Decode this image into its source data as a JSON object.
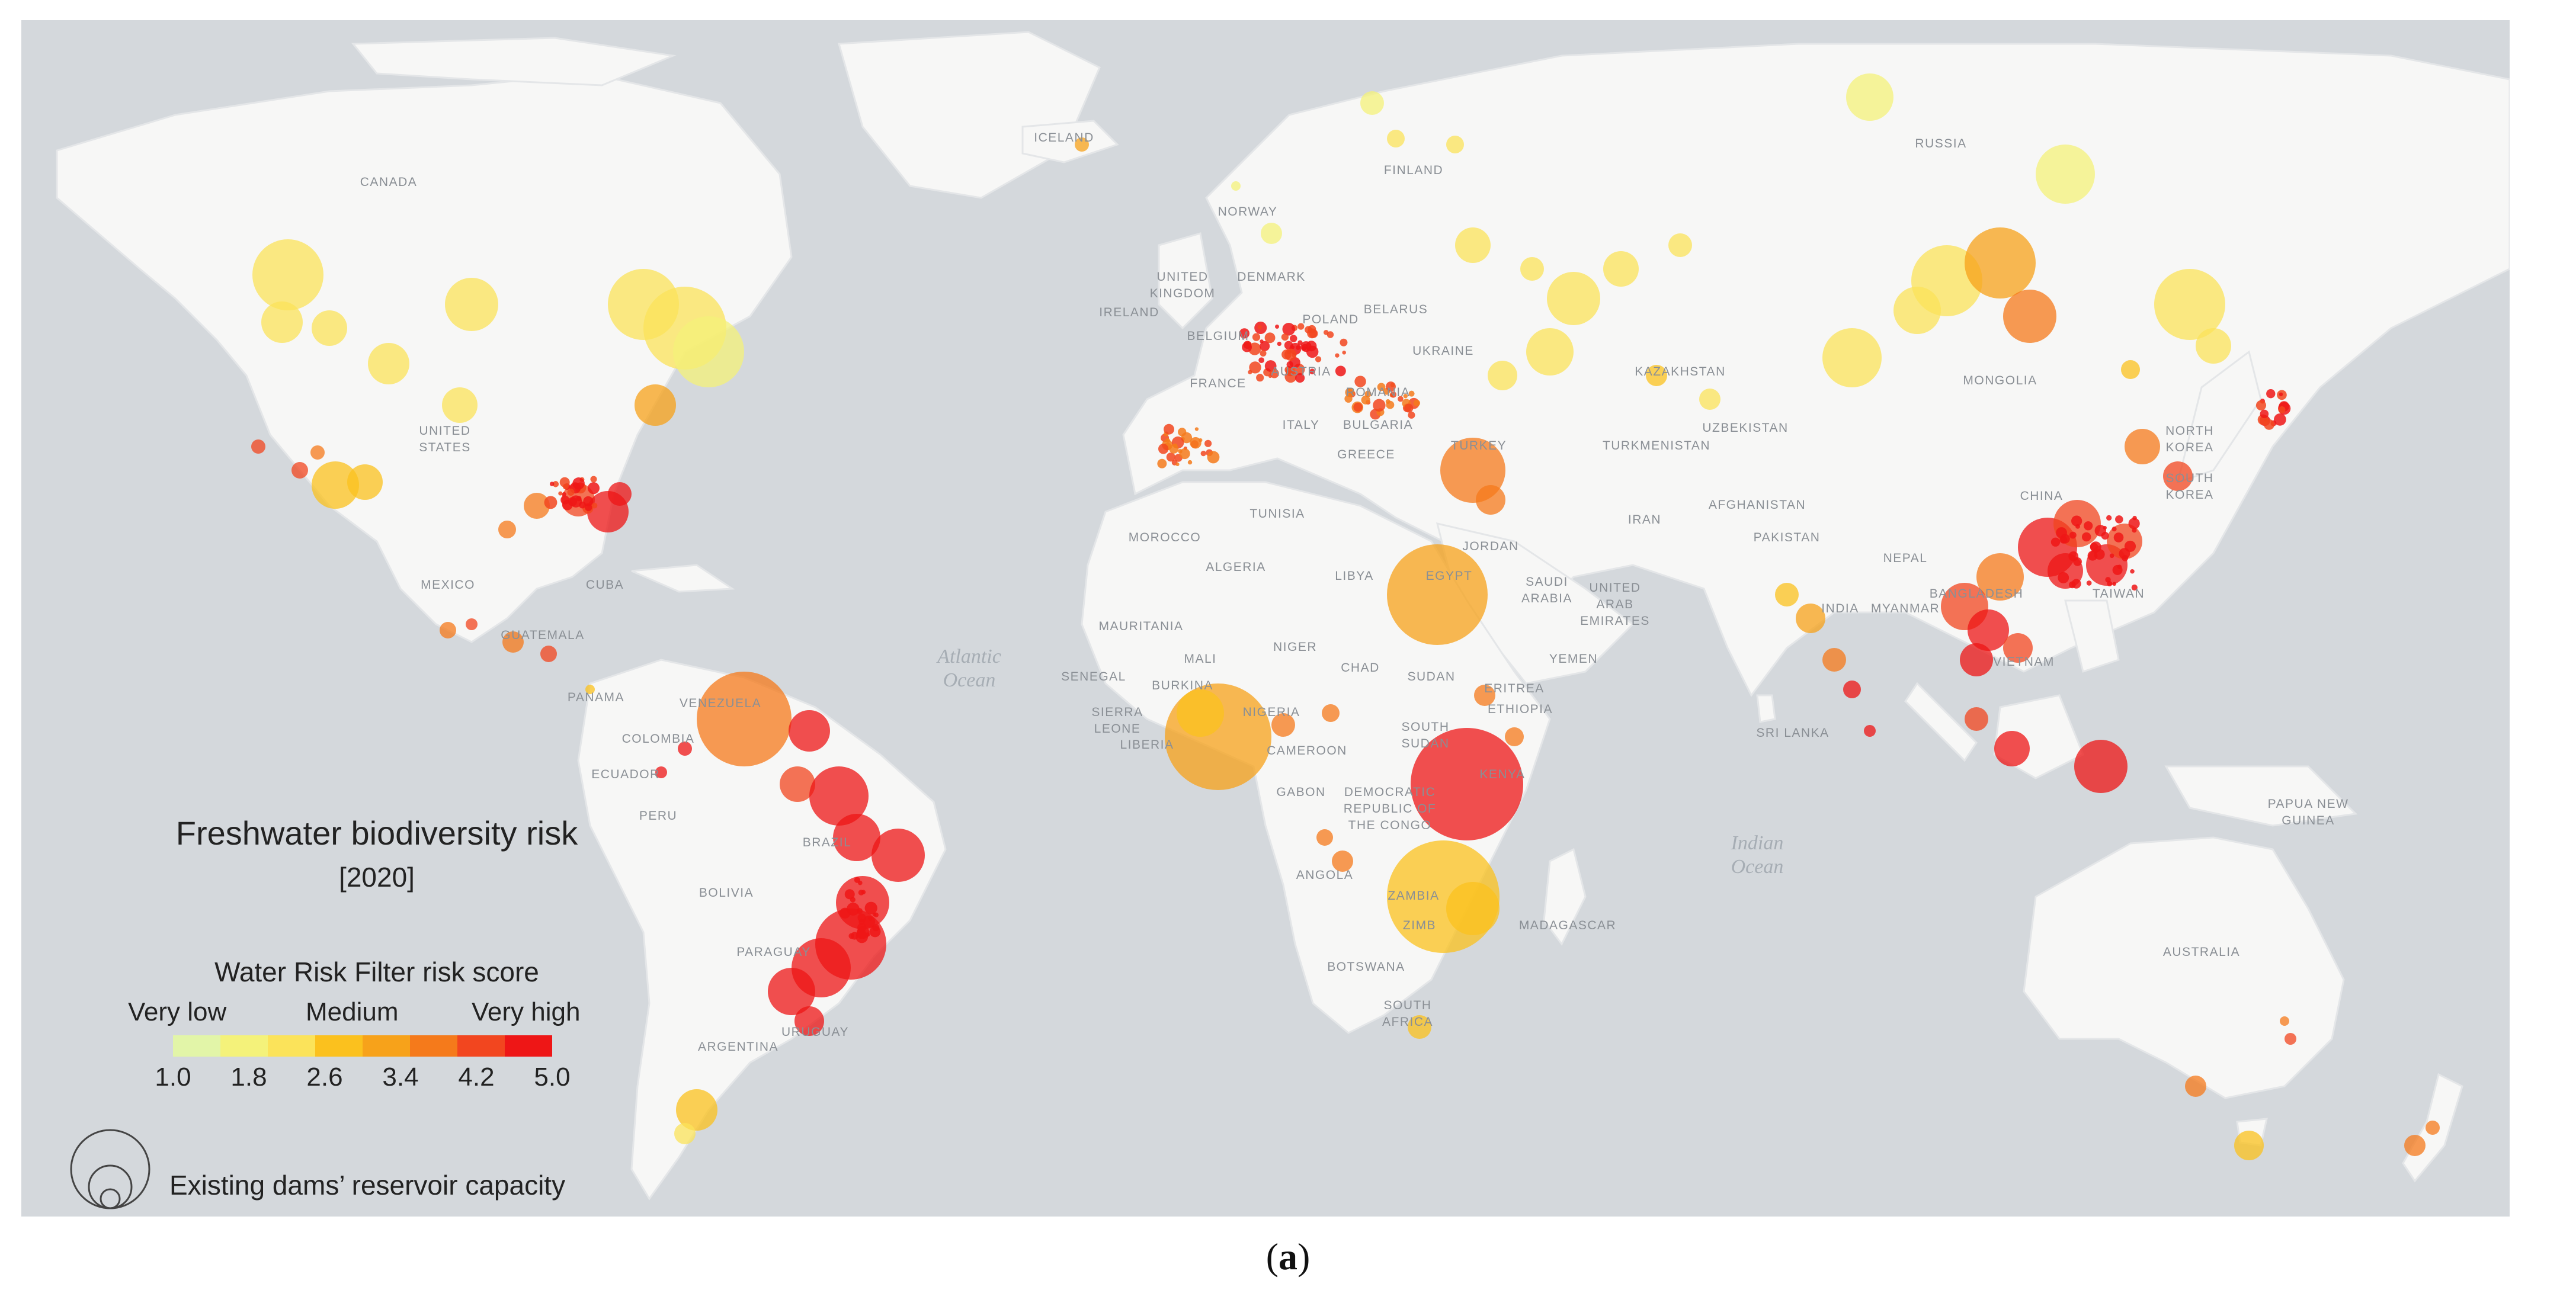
{
  "legend": {
    "title": "Freshwater biodiversity risk",
    "year": "[2020]",
    "scale_label": "Water Risk Filter risk score",
    "categories": {
      "low": "Very low",
      "medium": "Medium",
      "high": "Very high"
    },
    "ticks": [
      "1.0",
      "1.8",
      "2.6",
      "3.4",
      "4.2",
      "5.0"
    ],
    "colors": [
      "#e2f5a8",
      "#f4f27a",
      "#fbe35a",
      "#fbc11e",
      "#f7a21a",
      "#f57a1b",
      "#f2461f",
      "#ee1616"
    ],
    "size_label": "Existing dams’ reservoir capacity"
  },
  "caption": {
    "open": "(",
    "letter": "a",
    "close": ")"
  },
  "map_labels": {
    "canada": "CANADA",
    "united": "UNITED",
    "states": "STATES",
    "mexico": "MEXICO",
    "cuba": "CUBA",
    "guatemala": "GUATEMALA",
    "panama": "PANAMA",
    "venezuela": "VENEZUELA",
    "colombia": "COLOMBIA",
    "ecuador": "ECUADOR",
    "peru": "PERU",
    "brazil": "BRAZIL",
    "bolivia": "BOLIVIA",
    "paraguay": "PARAGUAY",
    "uruguay": "URUGUAY",
    "argentina": "ARGENTINA",
    "iceland": "ICELAND",
    "norway": "NORWAY",
    "finland": "FINLAND",
    "russia": "RUSSIA",
    "united_kingdom_1": "UNITED",
    "united_kingdom_2": "KINGDOM",
    "ireland": "IRELAND",
    "denmark": "DENMARK",
    "belarus": "BELARUS",
    "poland": "POLAND",
    "belgium": "BELGIUM",
    "france": "FRANCE",
    "austria": "AUSTRIA",
    "ukraine": "UKRAINE",
    "romania": "ROMANIA",
    "bulgaria": "BULGARIA",
    "italy": "ITALY",
    "greece": "GREECE",
    "turkey": "TURKEY",
    "turkmenistan": "TURKMENISTAN",
    "kazakhstan": "KAZAKHSTAN",
    "uzbekistan": "UZBEKISTAN",
    "mongolia": "MONGOLIA",
    "afghanistan": "AFGHANISTAN",
    "pakistan": "PAKISTAN",
    "iran": "IRAN",
    "nepal": "NEPAL",
    "bangladesh": "BANGLADESH",
    "india": "INDIA",
    "china": "CHINA",
    "north_korea": "NORTH",
    "korea": "KOREA",
    "south_korea": "SOUTH",
    "south_korea_2": "KOREA",
    "taiwan": "TAIWAN",
    "myanmar": "MYANMAR",
    "vietnam": "VIETNAM",
    "sri_lanka": "SRI LANKA",
    "morocco": "MOROCCO",
    "tunisia": "TUNISIA",
    "algeria": "ALGERIA",
    "libya": "LIBYA",
    "egypt": "EGYPT",
    "jordan": "JORDAN",
    "saudi": "SAUDI",
    "arabia": "ARABIA",
    "uae_1": "UNITED",
    "uae_2": "ARAB",
    "uae_3": "EMIRATES",
    "yemen": "YEMEN",
    "mauritania": "MAURITANIA",
    "mali": "MALI",
    "niger": "NIGER",
    "chad": "CHAD",
    "sudan": "SUDAN",
    "eritrea": "ERITREA",
    "ethiopia": "ETHIOPIA",
    "senegal": "SENEGAL",
    "burkina": "BURKINA",
    "sierra": "SIERRA",
    "leone": "LEONE",
    "liberia": "LIBERIA",
    "nigeria": "NIGERIA",
    "cameroon": "CAMEROON",
    "south_sudan_1": "SOUTH",
    "south_sudan_2": "SUDAN",
    "kenya": "KENYA",
    "gabon": "GABON",
    "drc_1": "DEMOCRATIC",
    "drc_2": "REPUBLIC OF",
    "drc_3": "THE CONGO",
    "angola": "ANGOLA",
    "zambia": "ZAMBIA",
    "zimbabwe": "ZIMB",
    "madagascar": "MADAGASCAR",
    "botswana": "BOTSWANA",
    "south_africa_1": "SOUTH",
    "south_africa_2": "AFRICA",
    "papua_1": "PAPUA NEW",
    "papua_2": "GUINEA",
    "australia": "AUSTRALIA"
  },
  "ocean_labels": {
    "atlantic_1": "Atlantic",
    "atlantic_2": "Ocean",
    "indian_1": "Indian",
    "indian_2": "Ocean"
  }
}
